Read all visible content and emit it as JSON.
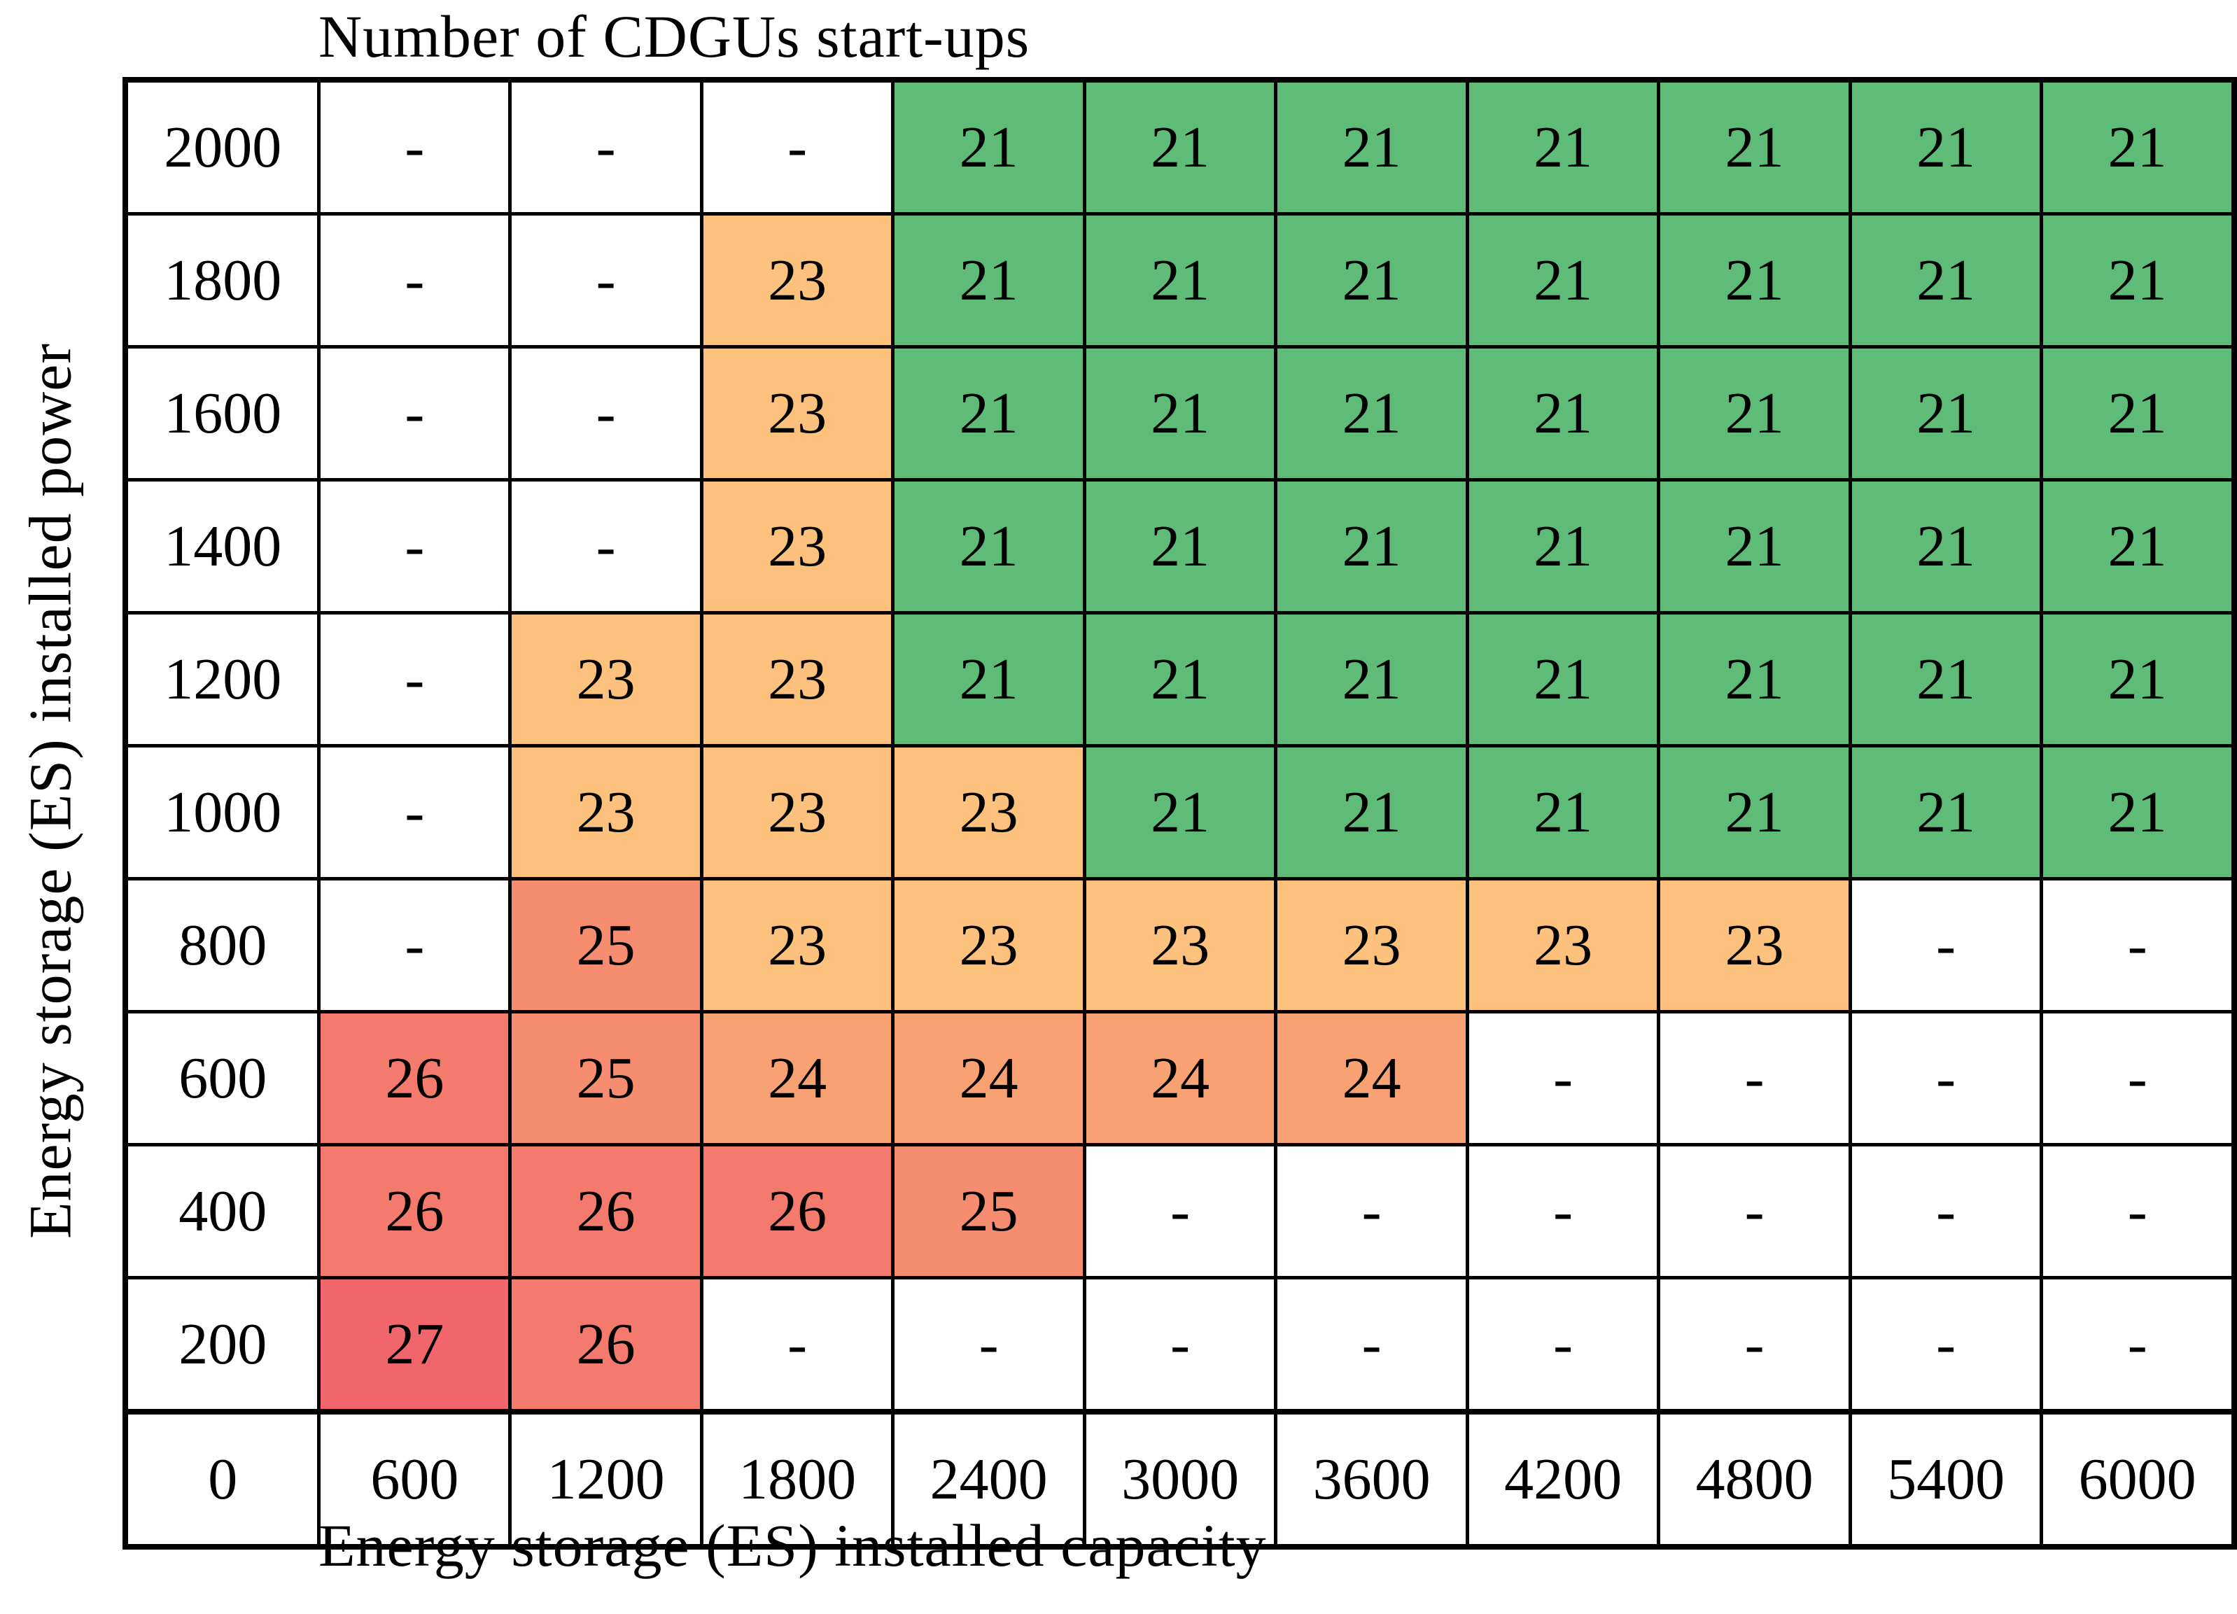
{
  "chart_data": {
    "type": "heatmap",
    "title": "Number of CDGUs start-ups",
    "xlabel": "Energy storage (ES) installed capacity",
    "ylabel": "Energy storage (ES) installed power",
    "legend": "none",
    "grid": "table-borders",
    "origin_label": "0",
    "x_ticks": [
      "600",
      "1200",
      "1800",
      "2400",
      "3000",
      "3600",
      "4200",
      "4800",
      "5400",
      "6000"
    ],
    "y_ticks": [
      "2000",
      "1800",
      "1600",
      "1400",
      "1200",
      "1000",
      "800",
      "600",
      "400",
      "200"
    ],
    "empty_marker": "-",
    "matrix": [
      [
        "-",
        "-",
        "-",
        "21",
        "21",
        "21",
        "21",
        "21",
        "21",
        "21"
      ],
      [
        "-",
        "-",
        "23",
        "21",
        "21",
        "21",
        "21",
        "21",
        "21",
        "21"
      ],
      [
        "-",
        "-",
        "23",
        "21",
        "21",
        "21",
        "21",
        "21",
        "21",
        "21"
      ],
      [
        "-",
        "-",
        "23",
        "21",
        "21",
        "21",
        "21",
        "21",
        "21",
        "21"
      ],
      [
        "-",
        "23",
        "23",
        "21",
        "21",
        "21",
        "21",
        "21",
        "21",
        "21"
      ],
      [
        "-",
        "23",
        "23",
        "23",
        "21",
        "21",
        "21",
        "21",
        "21",
        "21"
      ],
      [
        "-",
        "25",
        "23",
        "23",
        "23",
        "23",
        "23",
        "23",
        "-",
        "-"
      ],
      [
        "26",
        "25",
        "24",
        "24",
        "24",
        "24",
        "-",
        "-",
        "-",
        "-"
      ],
      [
        "26",
        "26",
        "26",
        "25",
        "-",
        "-",
        "-",
        "-",
        "-",
        "-"
      ],
      [
        "27",
        "26",
        "-",
        "-",
        "-",
        "-",
        "-",
        "-",
        "-",
        "-"
      ]
    ],
    "value_colors": {
      "21": "#5fbc78",
      "23": "#fbc17d",
      "24": "#f8a273",
      "25": "#f68d70",
      "26": "#f47a6e",
      "27": "#f1656c",
      "-": "#ffffff"
    },
    "colors": {
      "border": "#000000",
      "text": "#000000",
      "background": "#ffffff"
    }
  }
}
